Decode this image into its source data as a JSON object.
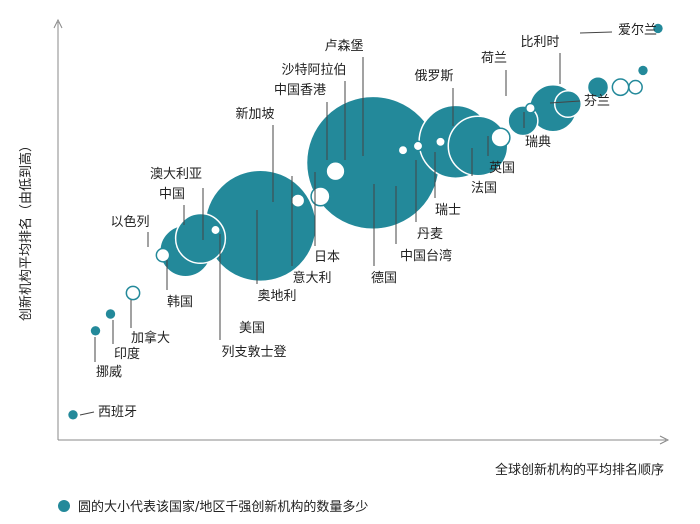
{
  "colors": {
    "bubble": "#23899a",
    "leader": "#444444",
    "axis": "#888888"
  },
  "chart_data": {
    "type": "scatter",
    "xlabel": "全球创新机构的平均排名顺序",
    "ylabel": "创新机构平均排名（由低到高）",
    "legend": "圆的大小代表该国家/地区千强创新机构的数量多少",
    "series": [
      {
        "name": "西班牙",
        "x": 2,
        "y": 6,
        "size": 1
      },
      {
        "name": "挪威",
        "x": 5,
        "y": 26,
        "size": 1
      },
      {
        "name": "印度",
        "x": 7,
        "y": 30,
        "size": 1
      },
      {
        "name": "加拿大",
        "x": 10,
        "y": 35,
        "size": 2
      },
      {
        "name": "以色列",
        "x": 14,
        "y": 44,
        "size": 2
      },
      {
        "name": "韩国",
        "x": 17,
        "y": 45,
        "size": 30
      },
      {
        "name": "澳大利亚",
        "x": 21,
        "y": 50,
        "size": 1
      },
      {
        "name": "中国",
        "x": 19,
        "y": 48,
        "size": 28
      },
      {
        "name": "美国",
        "x": 27,
        "y": 51,
        "size": 140
      },
      {
        "name": "奥地利",
        "x": 32,
        "y": 57,
        "size": 2
      },
      {
        "name": "新加坡",
        "x": 35,
        "y": 58,
        "size": 4
      },
      {
        "name": "意大利",
        "x": 37,
        "y": 64,
        "size": 4
      },
      {
        "name": "日本",
        "x": 42,
        "y": 66,
        "size": 200
      },
      {
        "name": "中国香港",
        "x": 46,
        "y": 69,
        "size": 1
      },
      {
        "name": "沙特阿拉伯",
        "x": 48,
        "y": 70,
        "size": 1
      },
      {
        "name": "卢森堡",
        "x": 51,
        "y": 71,
        "size": 1
      },
      {
        "name": "德国",
        "x": 53,
        "y": 71,
        "size": 60
      },
      {
        "name": "中国台湾",
        "x": 56,
        "y": 70,
        "size": 40
      },
      {
        "name": "丹麦",
        "x": 59,
        "y": 72,
        "size": 4
      },
      {
        "name": "瑞士",
        "x": 62,
        "y": 76,
        "size": 10
      },
      {
        "name": "俄罗斯",
        "x": 63,
        "y": 79,
        "size": 1
      },
      {
        "name": "法国",
        "x": 66,
        "y": 79,
        "size": 25
      },
      {
        "name": "英国",
        "x": 68,
        "y": 80,
        "size": 8
      },
      {
        "name": "荷兰",
        "x": 72,
        "y": 84,
        "size": 5
      },
      {
        "name": "瑞典",
        "x": 75,
        "y": 84,
        "size": 3
      },
      {
        "name": "芬兰",
        "x": 77,
        "y": 84,
        "size": 2
      },
      {
        "name": "比利时",
        "x": 78,
        "y": 88,
        "size": 1
      },
      {
        "name": "爱尔兰",
        "x": 80,
        "y": 98,
        "size": 1
      }
    ]
  }
}
